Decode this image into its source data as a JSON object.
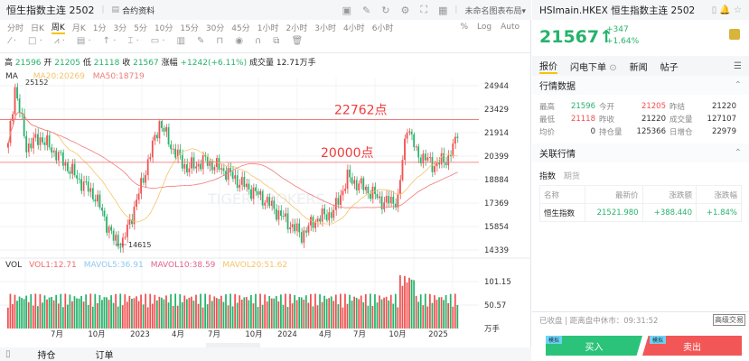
{
  "header": {
    "title": "恒生指数主连 2502",
    "contract_info": "合约资料",
    "layout_name": "未命名图表布局▾"
  },
  "timeframes": [
    "分时",
    "日K",
    "周K",
    "月K",
    "1分",
    "3分",
    "5分",
    "10分",
    "15分",
    "30分",
    "45分",
    "1小时",
    "2小时",
    "3小时",
    "4小时",
    "6小时"
  ],
  "active_timeframe": "周K",
  "scale_options": [
    "%",
    "Log",
    "Auto"
  ],
  "ohlc": {
    "high_label": "高",
    "high": "21596",
    "open_label": "开",
    "open": "21205",
    "low_label": "低",
    "low": "21118",
    "close_label": "收",
    "close": "21567",
    "chg_label": "涨幅",
    "chg": "+1242(+6.11%)",
    "vol_label": "成交量",
    "vol": "12.71万手"
  },
  "ma": {
    "label": "MA",
    "ma20": "MA20:20269",
    "ma50": "MA50:18719"
  },
  "vol_legend": {
    "label": "VOL",
    "vol1": "VOL1:12.71",
    "mavol5": "MAVOL5:36.91",
    "mavol10": "MAVOL10:38.59",
    "mavol20": "MAVOL20:51.62"
  },
  "chart_data": {
    "type": "candlestick",
    "price_ticks": [
      "24944",
      "23429",
      "21914",
      "20399",
      "18884",
      "17369",
      "15854",
      "14339"
    ],
    "price_range": [
      14339,
      24944
    ],
    "vol_ticks": [
      "101.15",
      "50.57",
      "万手"
    ],
    "time_ticks": [
      "7月",
      "10月",
      "2023",
      "4月",
      "7月",
      "10月",
      "2024",
      "4月",
      "7月",
      "10月",
      "2025"
    ],
    "annotations": {
      "max_label": "25152",
      "min_label": "14615",
      "line1_label": "22762点",
      "line1": 22762,
      "line2_label": "20000点",
      "line2": 20000
    },
    "close_path": [
      [
        0,
        21000
      ],
      [
        3,
        24900
      ],
      [
        8,
        21000
      ],
      [
        14,
        21600
      ],
      [
        22,
        20400
      ],
      [
        30,
        19000
      ],
      [
        38,
        17800
      ],
      [
        46,
        15000
      ],
      [
        50,
        14800
      ],
      [
        56,
        17500
      ],
      [
        62,
        20500
      ],
      [
        66,
        22600
      ],
      [
        72,
        20800
      ],
      [
        78,
        19600
      ],
      [
        86,
        20100
      ],
      [
        94,
        19500
      ],
      [
        102,
        18600
      ],
      [
        112,
        17600
      ],
      [
        120,
        16400
      ],
      [
        128,
        15300
      ],
      [
        134,
        16300
      ],
      [
        142,
        16800
      ],
      [
        148,
        19000
      ],
      [
        156,
        18300
      ],
      [
        164,
        17400
      ],
      [
        170,
        17600
      ],
      [
        174,
        22500
      ],
      [
        178,
        20600
      ],
      [
        186,
        19800
      ],
      [
        192,
        20300
      ],
      [
        196,
        21567
      ]
    ]
  },
  "bottom_tabs": [
    "持仓",
    "订单"
  ],
  "right": {
    "title": "HSImain.HKEX 恒生指数主连 2502",
    "price": "21567↑",
    "chg": "+347",
    "chg_pct": "+1.64%",
    "tabs": [
      "报价",
      "闪电下单",
      "新闻",
      "帖子"
    ],
    "quote_header": "行情数据",
    "quote_rows": [
      [
        {
          "k": "最高",
          "v": "21596",
          "c": "g"
        },
        {
          "k": "今开",
          "v": "21205",
          "c": "r"
        },
        {
          "k": "昨结",
          "v": "21220",
          "c": ""
        }
      ],
      [
        {
          "k": "最低",
          "v": "21118",
          "c": "r"
        },
        {
          "k": "昨收",
          "v": "21220",
          "c": ""
        },
        {
          "k": "成交量",
          "v": "127107",
          "c": ""
        }
      ],
      [
        {
          "k": "均价",
          "v": "0",
          "c": ""
        },
        {
          "k": "持仓量",
          "v": "125366",
          "c": ""
        },
        {
          "k": "日增仓",
          "v": "22979",
          "c": ""
        }
      ]
    ],
    "related_header": "关联行情",
    "related_tabs": [
      "指数",
      "期货"
    ],
    "table_headers": [
      "名称",
      "最新价",
      "涨跌额",
      "涨跌幅"
    ],
    "table_rows": [
      [
        "恒生指数",
        "21521.980",
        "+388.440",
        "+1.84%"
      ]
    ],
    "status": "已收盘 | 距离盘中休市：09:31:52",
    "advanced": "高级交易",
    "sim_tag": "模拟",
    "buy": "买入",
    "sell": "卖出"
  },
  "colors": {
    "up": "#f05050",
    "down": "#26b36b",
    "accent": "#f5c400",
    "buy": "#2bc37a",
    "sell": "#f25656"
  }
}
